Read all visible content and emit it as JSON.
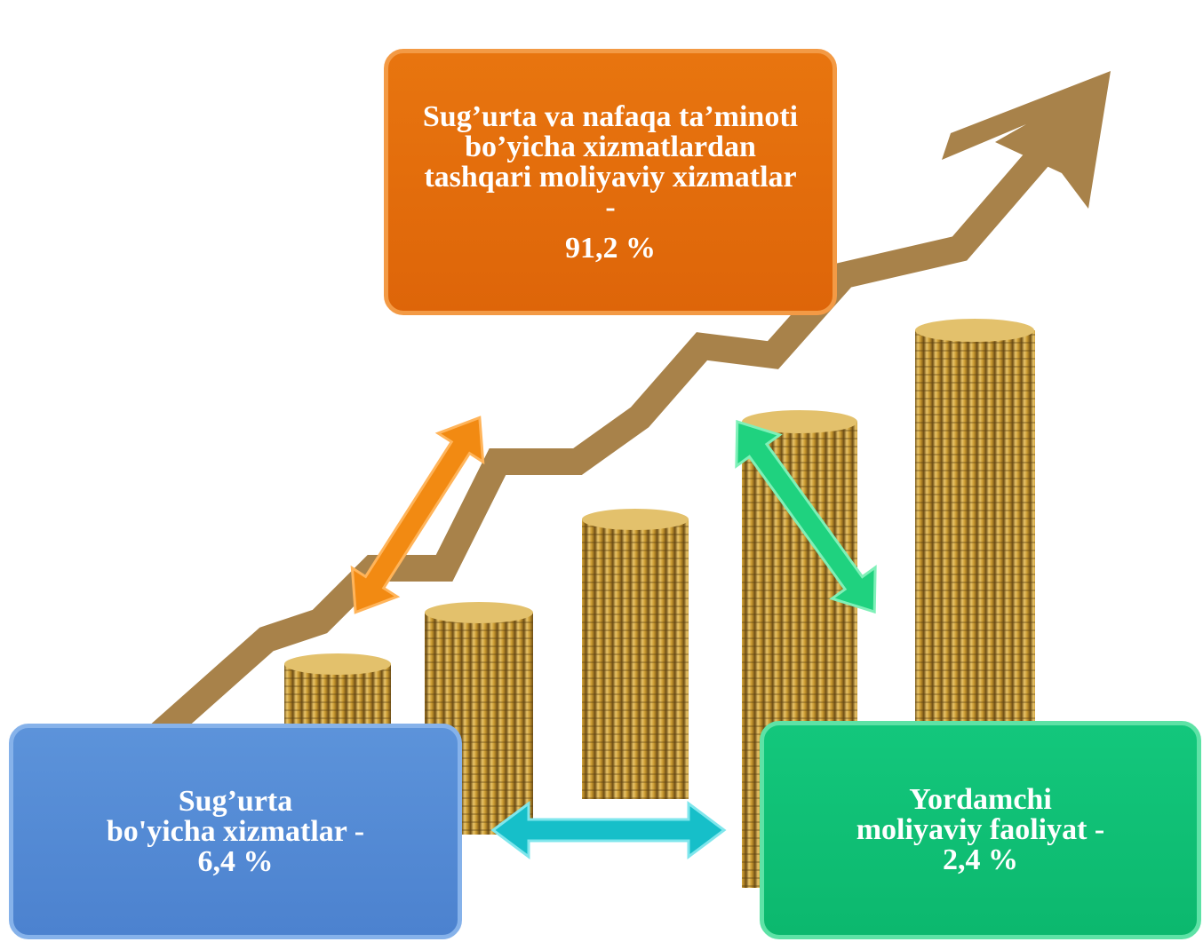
{
  "boxes": [
    {
      "lines": [
        "Sug’urta va nafaqa ta’minoti",
        "bo’yicha xizmatlardan",
        "tashqari moliyaviy xizmatlar",
        "-",
        "91,2 %"
      ]
    },
    {
      "lines": [
        "Sug’urta",
        "bo'yicha xizmatlar -",
        "6,4 %"
      ]
    },
    {
      "lines": [
        "Yordamchi",
        "moliyaviy faoliyat -",
        "2,4 %"
      ]
    }
  ]
}
